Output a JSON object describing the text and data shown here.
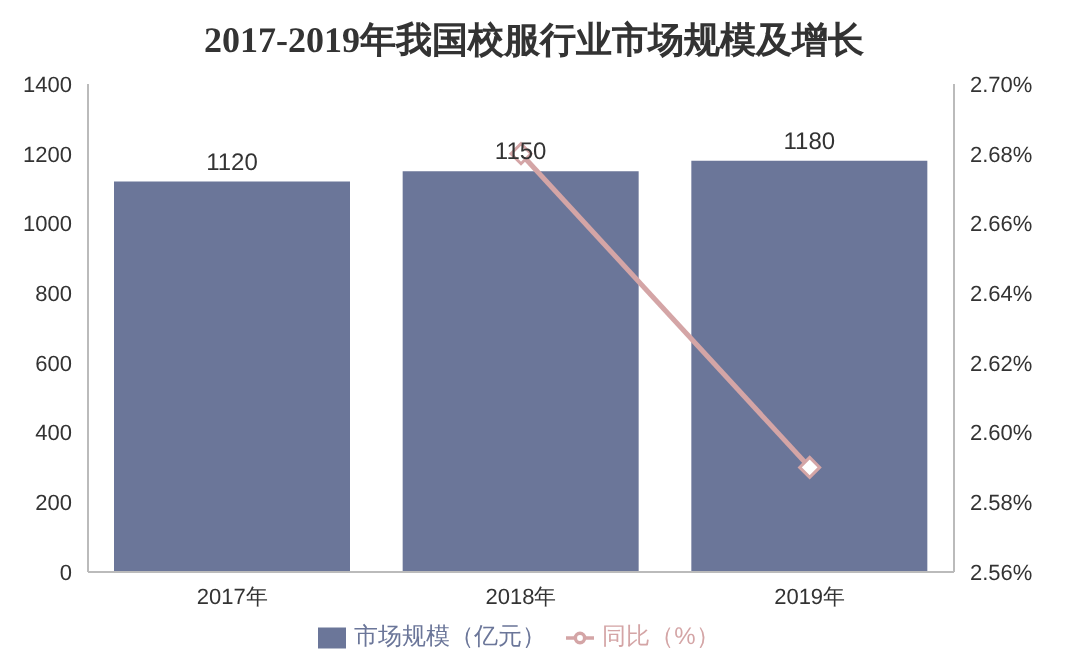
{
  "chart_data": {
    "type": "bar",
    "title": "2017-2019年我国校服行业市场规模及增长",
    "categories": [
      "2017年",
      "2018年",
      "2019年"
    ],
    "series": [
      {
        "name": "市场规模（亿元）",
        "color": "#6b7699",
        "values": [
          1120,
          1150,
          1180
        ],
        "value_labels": [
          "1120",
          "1150",
          "1180"
        ]
      },
      {
        "type": "line",
        "name": "同比（%）",
        "color": "#d4a5a6",
        "axis": "y2",
        "values": [
          null,
          2.68,
          2.59
        ],
        "marker": "diamond",
        "line_style": "solid"
      }
    ],
    "ylim": [
      0,
      1400
    ],
    "yticks": [
      0,
      200,
      400,
      600,
      800,
      1000,
      1200,
      1400
    ],
    "y2lim": [
      2.56,
      2.7
    ],
    "y2ticks": [
      {
        "value": 2.56,
        "label": "2.56%"
      },
      {
        "value": 2.58,
        "label": "2.58%"
      },
      {
        "value": 2.6,
        "label": "2.60%"
      },
      {
        "value": 2.62,
        "label": "2.62%"
      },
      {
        "value": 2.64,
        "label": "2.64%"
      },
      {
        "value": 2.66,
        "label": "2.66%"
      },
      {
        "value": 2.68,
        "label": "2.68%"
      },
      {
        "value": 2.7,
        "label": "2.70%"
      }
    ],
    "grid": false,
    "legend": "bottom"
  }
}
